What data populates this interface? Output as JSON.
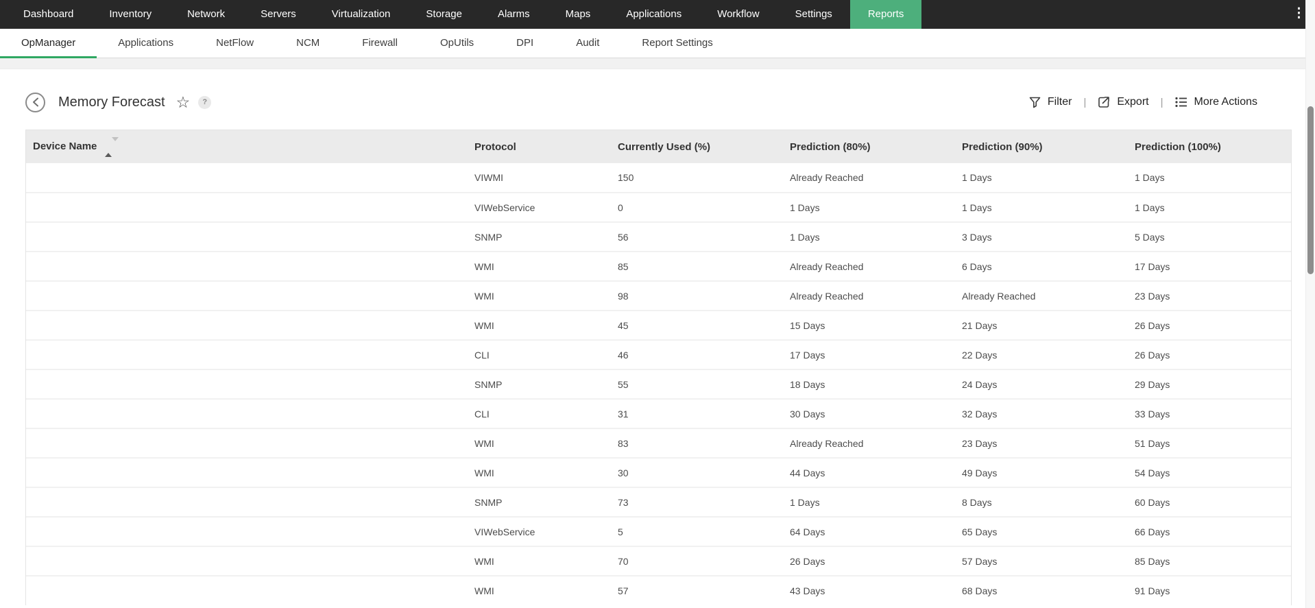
{
  "topnav": {
    "items": [
      "Dashboard",
      "Inventory",
      "Network",
      "Servers",
      "Virtualization",
      "Storage",
      "Alarms",
      "Maps",
      "Applications",
      "Workflow",
      "Settings",
      "Reports"
    ],
    "active_item": "Reports",
    "overflow_menu": "⋮",
    "bg_color": "#282828",
    "active_bg_color": "#4daf7c"
  },
  "subnav": {
    "items": [
      "OpManager",
      "Applications",
      "NetFlow",
      "NCM",
      "Firewall",
      "OpUtils",
      "DPI",
      "Audit",
      "Report Settings"
    ],
    "active_item": "OpManager",
    "active_underline_color": "#2fa862"
  },
  "page_header": {
    "title": "Memory Forecast",
    "help_badge": "?",
    "separator": "|",
    "actions": [
      {
        "label": "Filter",
        "icon": "filter-funnel-icon"
      },
      {
        "label": "Export",
        "icon": "export-icon"
      },
      {
        "label": "More Actions",
        "icon": "list-icon"
      }
    ]
  },
  "table": {
    "columns": [
      {
        "label": "Device Name",
        "sorted": "asc"
      },
      {
        "label": "Protocol"
      },
      {
        "label": "Currently Used (%)"
      },
      {
        "label": "Prediction (80%)"
      },
      {
        "label": "Prediction (90%)"
      },
      {
        "label": "Prediction (100%)"
      }
    ],
    "row_keys": [
      "device",
      "protocol",
      "used",
      "p80",
      "p90",
      "p100"
    ],
    "rows": [
      {
        "device": "",
        "protocol": "VIWMI",
        "used": "150",
        "p80": "Already Reached",
        "p90": "1 Days",
        "p100": "1 Days"
      },
      {
        "device": "",
        "protocol": "VIWebService",
        "used": "0",
        "p80": "1 Days",
        "p90": "1 Days",
        "p100": "1 Days"
      },
      {
        "device": "",
        "protocol": "SNMP",
        "used": "56",
        "p80": "1 Days",
        "p90": "3 Days",
        "p100": "5 Days"
      },
      {
        "device": "",
        "protocol": "WMI",
        "used": "85",
        "p80": "Already Reached",
        "p90": "6 Days",
        "p100": "17 Days"
      },
      {
        "device": "",
        "protocol": "WMI",
        "used": "98",
        "p80": "Already Reached",
        "p90": "Already Reached",
        "p100": "23 Days"
      },
      {
        "device": "",
        "protocol": "WMI",
        "used": "45",
        "p80": "15 Days",
        "p90": "21 Days",
        "p100": "26 Days"
      },
      {
        "device": "",
        "protocol": "CLI",
        "used": "46",
        "p80": "17 Days",
        "p90": "22 Days",
        "p100": "26 Days"
      },
      {
        "device": "",
        "protocol": "SNMP",
        "used": "55",
        "p80": "18 Days",
        "p90": "24 Days",
        "p100": "29 Days"
      },
      {
        "device": "",
        "protocol": "CLI",
        "used": "31",
        "p80": "30 Days",
        "p90": "32 Days",
        "p100": "33 Days"
      },
      {
        "device": "",
        "protocol": "WMI",
        "used": "83",
        "p80": "Already Reached",
        "p90": "23 Days",
        "p100": "51 Days"
      },
      {
        "device": "",
        "protocol": "WMI",
        "used": "30",
        "p80": "44 Days",
        "p90": "49 Days",
        "p100": "54 Days"
      },
      {
        "device": "",
        "protocol": "SNMP",
        "used": "73",
        "p80": "1 Days",
        "p90": "8 Days",
        "p100": "60 Days"
      },
      {
        "device": "",
        "protocol": "VIWebService",
        "used": "5",
        "p80": "64 Days",
        "p90": "65 Days",
        "p100": "66 Days"
      },
      {
        "device": "",
        "protocol": "WMI",
        "used": "70",
        "p80": "26 Days",
        "p90": "57 Days",
        "p100": "85 Days"
      },
      {
        "device": "",
        "protocol": "WMI",
        "used": "57",
        "p80": "43 Days",
        "p90": "68 Days",
        "p100": "91 Days"
      }
    ]
  }
}
